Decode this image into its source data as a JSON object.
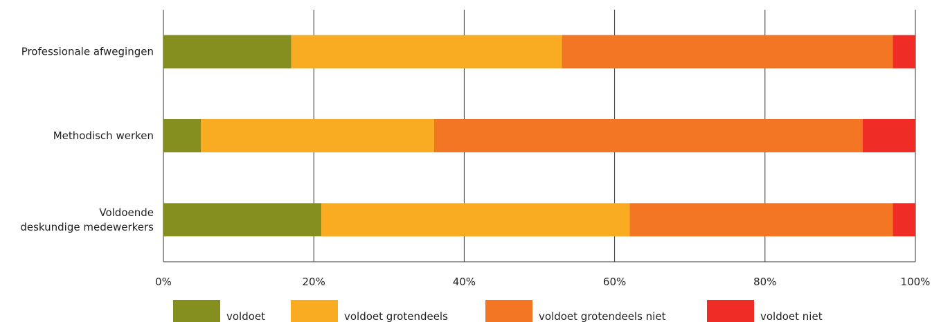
{
  "chart_data": {
    "type": "bar",
    "orientation": "horizontal",
    "stacked": true,
    "categories": [
      [
        "Professionale afwegingen"
      ],
      [
        "Methodisch werken"
      ],
      [
        "Voldoende",
        "deskundige medewerkers"
      ]
    ],
    "series": [
      {
        "name": "voldoet",
        "color": "#848f1f",
        "values": [
          17,
          5,
          21
        ]
      },
      {
        "name": "voldoet grotendeels",
        "color": "#f9ac22",
        "values": [
          36,
          31,
          41
        ]
      },
      {
        "name": "voldoet grotendeels niet",
        "color": "#f37624",
        "values": [
          44,
          57,
          35
        ]
      },
      {
        "name": "voldoet niet",
        "color": "#ef2c26",
        "values": [
          3,
          7,
          3
        ]
      }
    ],
    "xlim": [
      0,
      100
    ],
    "xticks": [
      "0%",
      "20%",
      "40%",
      "60%",
      "80%",
      "100%"
    ],
    "grid": true,
    "legend": "bottom"
  }
}
